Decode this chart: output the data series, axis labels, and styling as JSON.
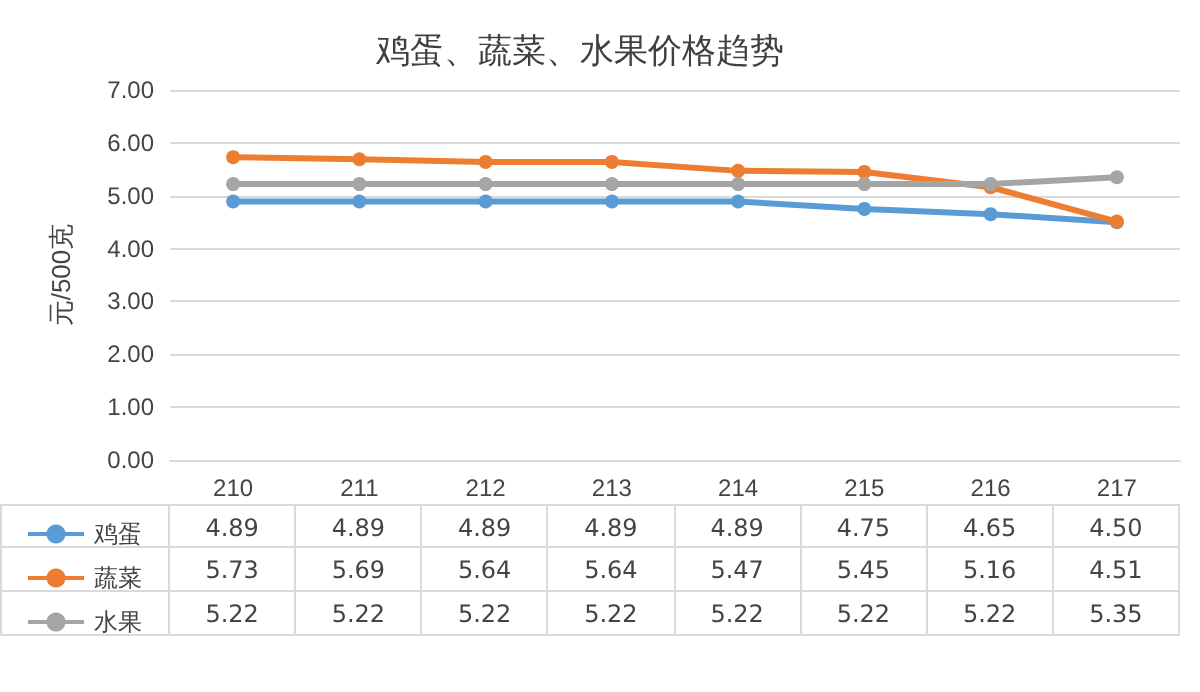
{
  "chart_data": {
    "type": "line",
    "title": "鸡蛋、蔬菜、水果价格趋势",
    "ylabel": "元/500克",
    "categories": [
      "210",
      "211",
      "212",
      "213",
      "214",
      "215",
      "216",
      "217"
    ],
    "series": [
      {
        "name": "鸡蛋",
        "color": "#5b9bd5",
        "values": [
          4.89,
          4.89,
          4.89,
          4.89,
          4.89,
          4.75,
          4.65,
          4.5
        ],
        "value_labels": [
          "4.89",
          "4.89",
          "4.89",
          "4.89",
          "4.89",
          "4.75",
          "4.65",
          "4.50"
        ]
      },
      {
        "name": "蔬菜",
        "color": "#ed7d31",
        "values": [
          5.73,
          5.69,
          5.64,
          5.64,
          5.47,
          5.45,
          5.16,
          4.51
        ],
        "value_labels": [
          "5.73",
          "5.69",
          "5.64",
          "5.64",
          "5.47",
          "5.45",
          "5.16",
          "4.51"
        ]
      },
      {
        "name": "水果",
        "color": "#a5a5a5",
        "values": [
          5.22,
          5.22,
          5.22,
          5.22,
          5.22,
          5.22,
          5.22,
          5.35
        ],
        "value_labels": [
          "5.22",
          "5.22",
          "5.22",
          "5.22",
          "5.22",
          "5.22",
          "5.22",
          "5.35"
        ]
      }
    ],
    "ylim": [
      0,
      7
    ],
    "yticks": [
      {
        "value": 0,
        "label": "0.00"
      },
      {
        "value": 1,
        "label": "1.00"
      },
      {
        "value": 2,
        "label": "2.00"
      },
      {
        "value": 3,
        "label": "3.00"
      },
      {
        "value": 4,
        "label": "4.00"
      },
      {
        "value": 5,
        "label": "5.00"
      },
      {
        "value": 6,
        "label": "6.00"
      },
      {
        "value": 7,
        "label": "7.00"
      }
    ],
    "grid": "y",
    "legend": "bottom",
    "marker": "circle",
    "line_style": "solid"
  }
}
